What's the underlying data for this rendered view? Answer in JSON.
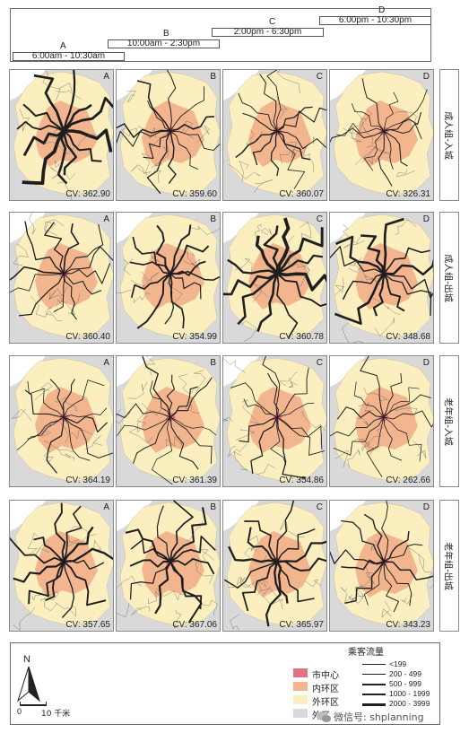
{
  "timeline": {
    "periods": [
      {
        "letter": "A",
        "label": "6:00am - 10:30am"
      },
      {
        "letter": "B",
        "label": "10:00am - 2:30pm"
      },
      {
        "letter": "C",
        "label": "2:00pm - 6:30pm"
      },
      {
        "letter": "D",
        "label": "6:00pm - 10:30pm"
      }
    ]
  },
  "rows": [
    {
      "label": "成人组-入城",
      "cv": [
        "CV: 362.90",
        "CV: 359.60",
        "CV: 360.07",
        "CV: 326.31"
      ]
    },
    {
      "label": "成人组-出城",
      "cv": [
        "CV: 360.40",
        "CV: 354.99",
        "CV: 360.78",
        "CV: 348.68"
      ]
    },
    {
      "label": "老年组-入城",
      "cv": [
        "CV: 364.19",
        "CV: 361.39",
        "CV: 354.86",
        "CV: 262.66"
      ]
    },
    {
      "label": "老年组-出城",
      "cv": [
        "CV: 357.65",
        "CV: 367.06",
        "CV: 365.97",
        "CV: 343.23"
      ]
    }
  ],
  "columns": [
    "A",
    "B",
    "C",
    "D"
  ],
  "flow_intensity": [
    [
      1.0,
      0.35,
      0.3,
      0.2
    ],
    [
      0.35,
      0.45,
      1.0,
      0.7
    ],
    [
      0.25,
      0.25,
      0.25,
      0.2
    ],
    [
      0.55,
      0.6,
      0.55,
      0.3
    ]
  ],
  "legend": {
    "north": "N",
    "scale_zero": "0",
    "scale_label": "10 千米",
    "zones": [
      {
        "label": "市中心",
        "color": "#e2737f"
      },
      {
        "label": "内环区",
        "color": "#f3b58e"
      },
      {
        "label": "外环区",
        "color": "#fbefbf"
      },
      {
        "label": "外区",
        "color": "#d9d9d9"
      }
    ],
    "flow_title": "乘客流量",
    "flow_classes": [
      "<199",
      "200 - 499",
      "500 - 999",
      "1000 - 1999",
      "2000 - 3999"
    ]
  },
  "watermark": "微信号: shplanning"
}
